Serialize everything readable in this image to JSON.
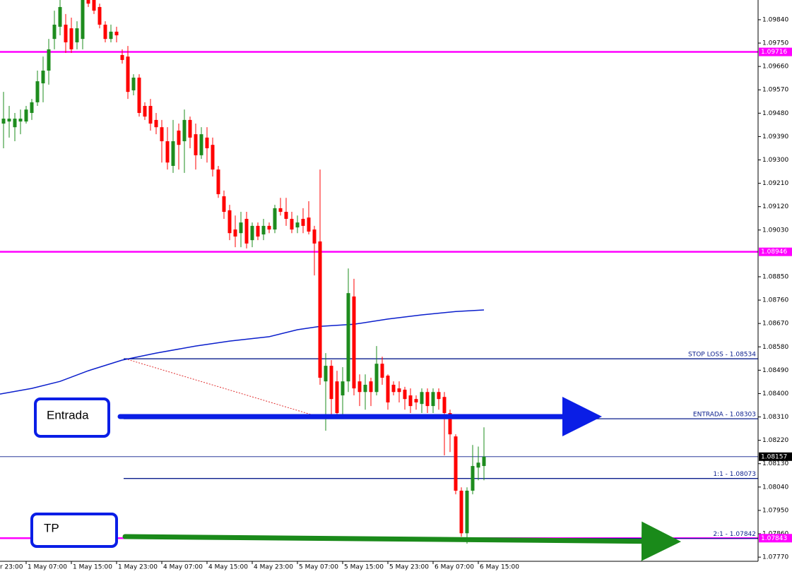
{
  "chart_data": {
    "type": "candlestick",
    "categories": [
      null,
      null,
      null,
      null,
      "1 May 07:00",
      null,
      null,
      null,
      null,
      null,
      null,
      null,
      "1 May 15:00",
      null,
      null,
      null,
      null,
      null,
      null,
      null,
      "1 May 23:00",
      null,
      null,
      null,
      null,
      null,
      null,
      null,
      "4 May 07:00",
      null,
      null,
      null,
      null,
      null,
      null,
      null,
      "4 May 15:00",
      null,
      null,
      null,
      null,
      null,
      null,
      null,
      "4 May 23:00",
      null,
      null,
      null,
      null,
      null,
      null,
      null,
      "5 May 07:00",
      null,
      null,
      null,
      null,
      null,
      null,
      null,
      "5 May 15:00",
      null,
      null,
      null,
      null,
      null,
      null,
      null,
      "5 May 23:00",
      null,
      null,
      null,
      null,
      null,
      null,
      null,
      "6 May 07:00",
      null,
      null,
      null,
      null,
      null,
      null,
      null,
      "6 May 15:00",
      null
    ],
    "clipped_x_label": "r 23:00",
    "open": [
      1.0944,
      1.09448,
      1.09426,
      1.09448,
      1.09448,
      1.09481,
      1.09522,
      1.09595,
      1.09644,
      1.09766,
      1.09813,
      1.09821,
      1.09807,
      1.09753,
      1.09766,
      1.09916,
      1.09916,
      1.09889,
      1.09821,
      1.09766,
      1.09794,
      1.09704,
      1.09698,
      1.09568,
      1.09617,
      1.09508,
      1.09508,
      1.09454,
      1.09426,
      1.09372,
      1.09277,
      1.09413,
      1.09372,
      1.09454,
      1.09399,
      1.09318,
      1.09386,
      1.09358,
      1.09263,
      1.0916,
      1.09106,
      1.09032,
      1.09018,
      1.09073,
      1.08991,
      1.09046,
      1.09013,
      1.09046,
      1.09032,
      1.09114,
      1.091,
      1.09073,
      1.0904,
      1.09073,
      1.09078,
      1.09032,
      1.08986,
      1.08447,
      1.08507,
      1.08447,
      1.08393,
      1.08447,
      1.08774,
      1.08447,
      1.08406,
      1.08447,
      1.08406,
      1.08515,
      1.08469,
      1.08434,
      1.0842,
      1.08415,
      1.08393,
      1.08379,
      1.0836,
      1.08406,
      1.08352,
      1.08406,
      1.08387,
      1.08325,
      1.08235,
      1.08026,
      1.07862,
      1.08026,
      1.08115,
      1.08121
    ],
    "high": [
      1.09562,
      1.09508,
      1.09481,
      1.09494,
      1.09508,
      1.09535,
      1.09644,
      1.09698,
      1.09766,
      1.09875,
      1.09916,
      1.09862,
      1.09848,
      1.09834,
      1.09916,
      1.09916,
      1.09916,
      1.09902,
      1.09834,
      1.09821,
      1.09813,
      1.09726,
      1.09739,
      1.0963,
      1.0963,
      1.09522,
      1.09535,
      1.09481,
      1.09454,
      1.09426,
      1.09454,
      1.0944,
      1.09494,
      1.09467,
      1.0944,
      1.09426,
      1.09426,
      1.09386,
      1.09277,
      1.09182,
      1.09127,
      1.09086,
      1.091,
      1.091,
      1.09059,
      1.09059,
      1.09073,
      1.09059,
      1.09127,
      1.09154,
      1.09154,
      1.091,
      1.09086,
      1.09114,
      1.09141,
      1.09046,
      1.09263,
      1.08556,
      1.08529,
      1.08488,
      1.08502,
      1.08882,
      1.08842,
      1.08474,
      1.08474,
      1.08461,
      1.08583,
      1.08542,
      1.08474,
      1.08447,
      1.08447,
      1.08426,
      1.0842,
      1.08393,
      1.0842,
      1.0842,
      1.0842,
      1.0842,
      1.08406,
      1.08338,
      1.08243,
      1.08039,
      1.08039,
      1.08202,
      1.08196,
      1.0827
    ],
    "low": [
      1.09345,
      1.09386,
      1.09372,
      1.09399,
      1.0944,
      1.09454,
      1.09508,
      1.09522,
      1.0959,
      1.09726,
      1.0978,
      1.09712,
      1.09712,
      1.09726,
      1.09726,
      1.09889,
      1.09862,
      1.09807,
      1.09753,
      1.09753,
      1.09753,
      1.09671,
      1.09535,
      1.09549,
      1.09467,
      1.09454,
      1.09413,
      1.09399,
      1.0929,
      1.09263,
      1.0925,
      1.09263,
      1.0925,
      1.09345,
      1.09263,
      1.09304,
      1.0929,
      1.09236,
      1.09154,
      1.09073,
      1.08991,
      1.08964,
      1.08964,
      1.08959,
      1.08964,
      1.08991,
      1.08991,
      1.09018,
      1.09018,
      1.09086,
      1.09046,
      1.09018,
      1.09018,
      1.09018,
      1.09013,
      1.08855,
      1.08434,
      1.08257,
      1.08311,
      1.08311,
      1.08311,
      1.08406,
      1.08393,
      1.08352,
      1.08338,
      1.08352,
      1.08393,
      1.08434,
      1.08338,
      1.08393,
      1.08366,
      1.08338,
      1.08325,
      1.08338,
      1.08325,
      1.08325,
      1.08325,
      1.08338,
      1.08162,
      1.08175,
      1.08012,
      1.07849,
      1.07822,
      1.08012,
      1.08066,
      1.08066
    ],
    "close": [
      1.09459,
      1.09459,
      1.09459,
      1.09459,
      1.09494,
      1.09522,
      1.09603,
      1.09644,
      1.09726,
      1.09821,
      1.09889,
      1.09753,
      1.09726,
      1.09807,
      1.09916,
      1.09902,
      1.09875,
      1.09821,
      1.09766,
      1.09794,
      1.0978,
      1.09685,
      1.09562,
      1.09617,
      1.09481,
      1.09467,
      1.0944,
      1.09426,
      1.09372,
      1.0929,
      1.09372,
      1.09358,
      1.09454,
      1.09386,
      1.09318,
      1.09399,
      1.09345,
      1.09263,
      1.09168,
      1.091,
      1.09018,
      1.09005,
      1.09059,
      1.08978,
      1.09046,
      1.09005,
      1.09046,
      1.09032,
      1.09114,
      1.091,
      1.09073,
      1.09032,
      1.09059,
      1.09046,
      1.09024,
      1.08978,
      1.08461,
      1.08507,
      1.08379,
      1.08325,
      1.08447,
      1.08787,
      1.0842,
      1.08406,
      1.08434,
      1.08406,
      1.08515,
      1.08461,
      1.08366,
      1.08406,
      1.08406,
      1.08379,
      1.08352,
      1.08366,
      1.08406,
      1.08352,
      1.08406,
      1.08379,
      1.08325,
      1.08243,
      1.08026,
      1.07862,
      1.08026,
      1.08121,
      1.08134,
      1.08157
    ],
    "up_color": "#1e8c1e",
    "down_color": "#ff0000",
    "moving_average": {
      "color": "#0a1ecc",
      "x": [
        0,
        5,
        10,
        15,
        21,
        27,
        34,
        40,
        47,
        52,
        56,
        62,
        68,
        74,
        80,
        85
      ],
      "values": [
        1.08398,
        1.0842,
        1.08447,
        1.08488,
        1.08529,
        1.08556,
        1.08583,
        1.08602,
        1.08619,
        1.08646,
        1.08659,
        1.08667,
        1.08687,
        1.08703,
        1.08716,
        1.08722
      ]
    },
    "ylim": [
      1.07754,
      1.09916
    ],
    "yticks": [
      {
        "value": 1.0984,
        "label": "1.09840"
      },
      {
        "value": 1.0975,
        "label": "1.09750"
      },
      {
        "value": 1.0966,
        "label": "1.09660"
      },
      {
        "value": 1.0957,
        "label": "1.09570"
      },
      {
        "value": 1.0948,
        "label": "1.09480"
      },
      {
        "value": 1.0939,
        "label": "1.09390"
      },
      {
        "value": 1.093,
        "label": "1.09300"
      },
      {
        "value": 1.0921,
        "label": "1.09210"
      },
      {
        "value": 1.0912,
        "label": "1.09120"
      },
      {
        "value": 1.0903,
        "label": "1.09030"
      },
      {
        "value": 1.0885,
        "label": "1.08850"
      },
      {
        "value": 1.0876,
        "label": "1.08760"
      },
      {
        "value": 1.0867,
        "label": "1.08670"
      },
      {
        "value": 1.0858,
        "label": "1.08580"
      },
      {
        "value": 1.0849,
        "label": "1.08490"
      },
      {
        "value": 1.084,
        "label": "1.08400"
      },
      {
        "value": 1.0831,
        "label": "1.08310"
      },
      {
        "value": 1.0822,
        "label": "1.08220"
      },
      {
        "value": 1.0813,
        "label": "1.08130"
      },
      {
        "value": 1.0804,
        "label": "1.08040"
      },
      {
        "value": 1.0795,
        "label": "1.07950"
      },
      {
        "value": 1.0786,
        "label": "1.07860"
      },
      {
        "value": 1.0777,
        "label": "1.07770"
      }
    ],
    "price_markers": [
      {
        "value": 1.09716,
        "color": "#ff00ff"
      },
      {
        "value": 1.08946,
        "color": "#ff00ff"
      },
      {
        "value": 1.07843,
        "color": "#ff00ff"
      },
      {
        "value": 1.08157,
        "color": "#000000"
      }
    ],
    "levels": [
      {
        "name": "STOP LOSS - 1.08534",
        "value": 1.08534
      },
      {
        "name": "ENTRADA - 1.08303",
        "value": 1.08303
      },
      {
        "name": "1:1 - 1.08073",
        "value": 1.08073
      },
      {
        "name": "2:1 - 1.07842",
        "value": 1.07842
      }
    ],
    "annotations": [
      "Entrada",
      "TP"
    ]
  }
}
